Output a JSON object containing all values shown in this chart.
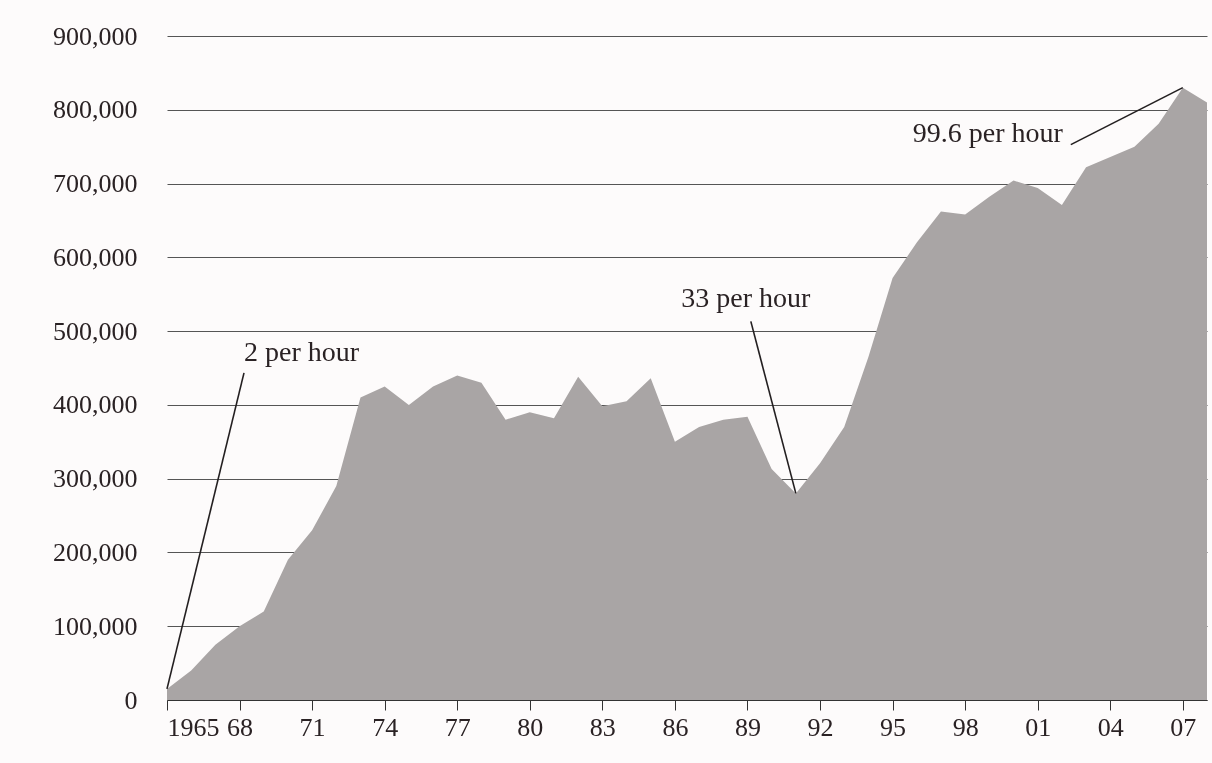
{
  "chart_data": {
    "type": "area",
    "x": [
      1965,
      1966,
      1967,
      1968,
      1969,
      1970,
      1971,
      1972,
      1973,
      1974,
      1975,
      1976,
      1977,
      1978,
      1979,
      1980,
      1981,
      1982,
      1983,
      1984,
      1985,
      1986,
      1987,
      1988,
      1989,
      1990,
      1991,
      1992,
      1993,
      1994,
      1995,
      1996,
      1997,
      1998,
      1999,
      2000,
      2001,
      2002,
      2003,
      2004,
      2005,
      2006,
      2007,
      2008
    ],
    "series": [
      {
        "color": "#a9a5a5",
        "values": [
          15000,
          40000,
          75000,
          100000,
          120000,
          190000,
          230000,
          290000,
          410000,
          425000,
          400000,
          425000,
          440000,
          430000,
          380000,
          390000,
          382000,
          438000,
          398000,
          405000,
          436000,
          350000,
          370000,
          380000,
          384000,
          313000,
          280000,
          321000,
          370000,
          465000,
          572000,
          620000,
          662000,
          658000,
          682000,
          704000,
          694000,
          671000,
          722000,
          736000,
          750000,
          781000,
          830000,
          810000
        ]
      }
    ],
    "xlim": [
      1965,
      2008
    ],
    "xticks": [
      {
        "value": 1965,
        "label": "1965"
      },
      {
        "value": 1968,
        "label": "68"
      },
      {
        "value": 1971,
        "label": "71"
      },
      {
        "value": 1974,
        "label": "74"
      },
      {
        "value": 1977,
        "label": "77"
      },
      {
        "value": 1980,
        "label": "80"
      },
      {
        "value": 1983,
        "label": "83"
      },
      {
        "value": 1986,
        "label": "86"
      },
      {
        "value": 1989,
        "label": "89"
      },
      {
        "value": 1992,
        "label": "92"
      },
      {
        "value": 1995,
        "label": "95"
      },
      {
        "value": 1998,
        "label": "98"
      },
      {
        "value": 2001,
        "label": "01"
      },
      {
        "value": 2004,
        "label": "04"
      },
      {
        "value": 2007,
        "label": "07"
      }
    ],
    "ylim": [
      0,
      900000
    ],
    "yticks": [
      {
        "value": 0,
        "label": "0"
      },
      {
        "value": 100000,
        "label": "100,000"
      },
      {
        "value": 200000,
        "label": "200,000"
      },
      {
        "value": 300000,
        "label": "300,000"
      },
      {
        "value": 400000,
        "label": "400,000"
      },
      {
        "value": 500000,
        "label": "500,000"
      },
      {
        "value": 600000,
        "label": "600,000"
      },
      {
        "value": 700000,
        "label": "700,000"
      },
      {
        "value": 800000,
        "label": "800,000"
      },
      {
        "value": 900000,
        "label": "900,000"
      }
    ],
    "grid": "y",
    "annotations": [
      {
        "text": "2 per hour",
        "x": 1965,
        "y": 15000
      },
      {
        "text": "33 per hour",
        "x": 1991,
        "y": 280000
      },
      {
        "text": "99.6 per hour",
        "x": 2007,
        "y": 830000
      }
    ]
  }
}
